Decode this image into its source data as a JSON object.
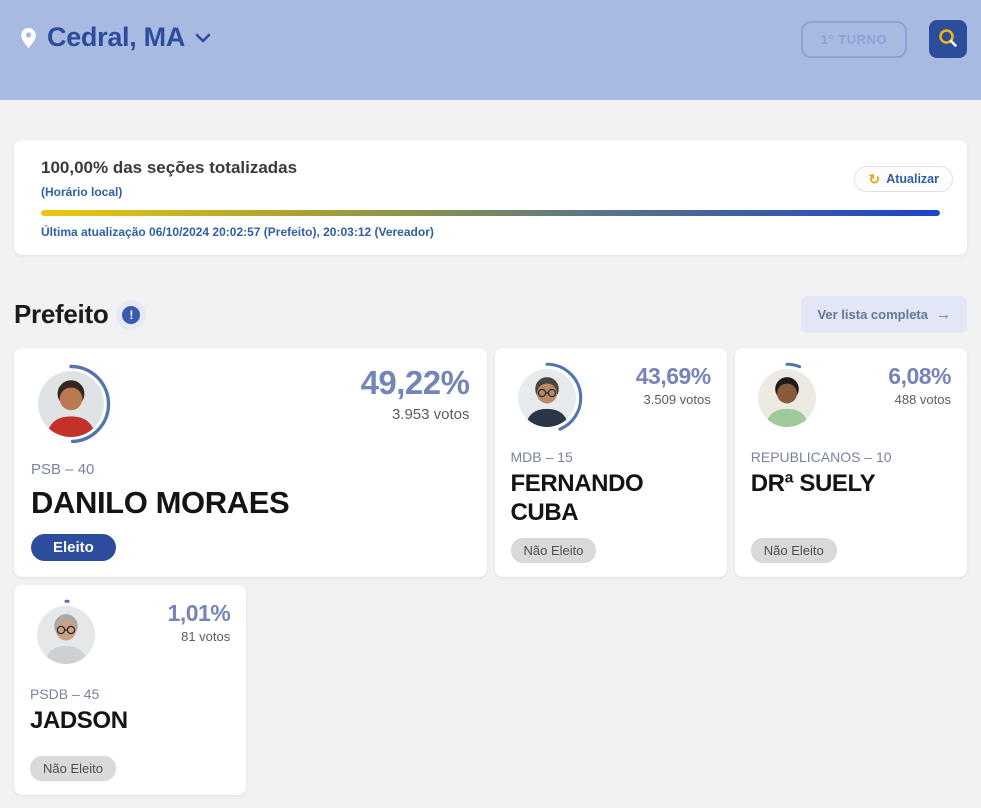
{
  "header": {
    "location": "Cedral, MA",
    "round_label": "1° TURNO"
  },
  "totalization": {
    "title": "100,00% das seções totalizadas",
    "timezone_note": "(Horário local)",
    "refresh_label": "Atualizar",
    "refresh_glyph": "↻",
    "last_update": "Última atualização 06/10/2024 20:02:57 (Prefeito), 20:03:12 (Vereador)",
    "progress_percent": 100
  },
  "section": {
    "title": "Prefeito",
    "info_glyph": "!",
    "view_all_label": "Ver lista completa",
    "view_all_arrow": "→"
  },
  "candidates": [
    {
      "name": "DANILO MORAES",
      "party": "PSB – 40",
      "percent": "49,22%",
      "percent_value": 49.22,
      "votes": "3.953 votos",
      "status": "Eleito",
      "elected": true,
      "avatar": {
        "bg": "#dfe3e6",
        "shirt": "#c43129",
        "skin": "#b97a52",
        "hair": "#32261f",
        "glasses": false
      }
    },
    {
      "name": "FERNANDO CUBA",
      "party": "MDB – 15",
      "percent": "43,69%",
      "percent_value": 43.69,
      "votes": "3.509 votos",
      "status": "Não Eleito",
      "elected": false,
      "avatar": {
        "bg": "#e8ebee",
        "shirt": "#2b3547",
        "skin": "#b98a63",
        "hair": "#4a4542",
        "glasses": true
      }
    },
    {
      "name": "DRª SUELY",
      "party": "REPUBLICANOS – 10",
      "percent": "6,08%",
      "percent_value": 6.08,
      "votes": "488 votos",
      "status": "Não Eleito",
      "elected": false,
      "avatar": {
        "bg": "#eceae2",
        "shirt": "#9ec99b",
        "skin": "#8a5a3d",
        "hair": "#211b18",
        "glasses": false
      }
    },
    {
      "name": "JADSON",
      "party": "PSDB – 45",
      "percent": "1,01%",
      "percent_value": 1.01,
      "votes": "81 votos",
      "status": "Não Eleito",
      "elected": false,
      "avatar": {
        "bg": "#e6e7e9",
        "shirt": "#cdd1d4",
        "skin": "#caa183",
        "hair": "#a9a9a6",
        "glasses": true
      }
    }
  ],
  "colors": {
    "header_bg": "#a9bae2",
    "accent_blue": "#2b4d9c",
    "percent_blue": "#7585b8",
    "arc_blue": "#5474ae",
    "search_yellow": "#f2b411",
    "link_blue": "#2e5fa3",
    "elected_badge_bg": "#2b4d9c",
    "not_elected_badge_bg": "#d9d9d9"
  }
}
